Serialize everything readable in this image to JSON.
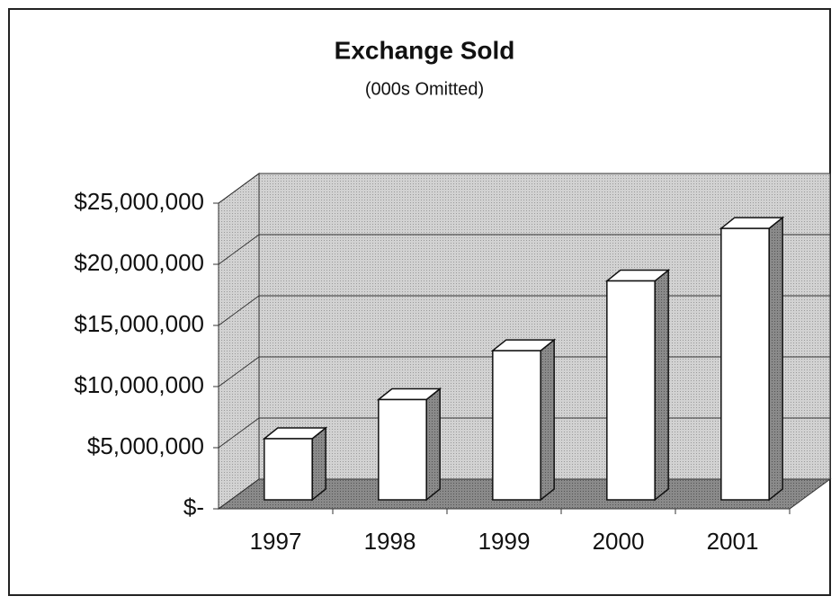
{
  "chart_data": {
    "type": "bar3d",
    "title": "Exchange Sold",
    "subtitle": "(000s Omitted)",
    "categories": [
      "1997",
      "1998",
      "1999",
      "2000",
      "2001"
    ],
    "values": [
      5000000,
      8200000,
      12200000,
      17900000,
      22200000
    ],
    "color": "#ffffff",
    "ylim": [
      0,
      25000000
    ],
    "yticks": [
      {
        "value": 0,
        "label": "$-"
      },
      {
        "value": 5000000,
        "label": "$5,000,000"
      },
      {
        "value": 10000000,
        "label": "$10,000,000"
      },
      {
        "value": 15000000,
        "label": "$15,000,000"
      },
      {
        "value": 20000000,
        "label": "$20,000,000"
      },
      {
        "value": 25000000,
        "label": "$25,000,000"
      }
    ],
    "grid": true
  }
}
